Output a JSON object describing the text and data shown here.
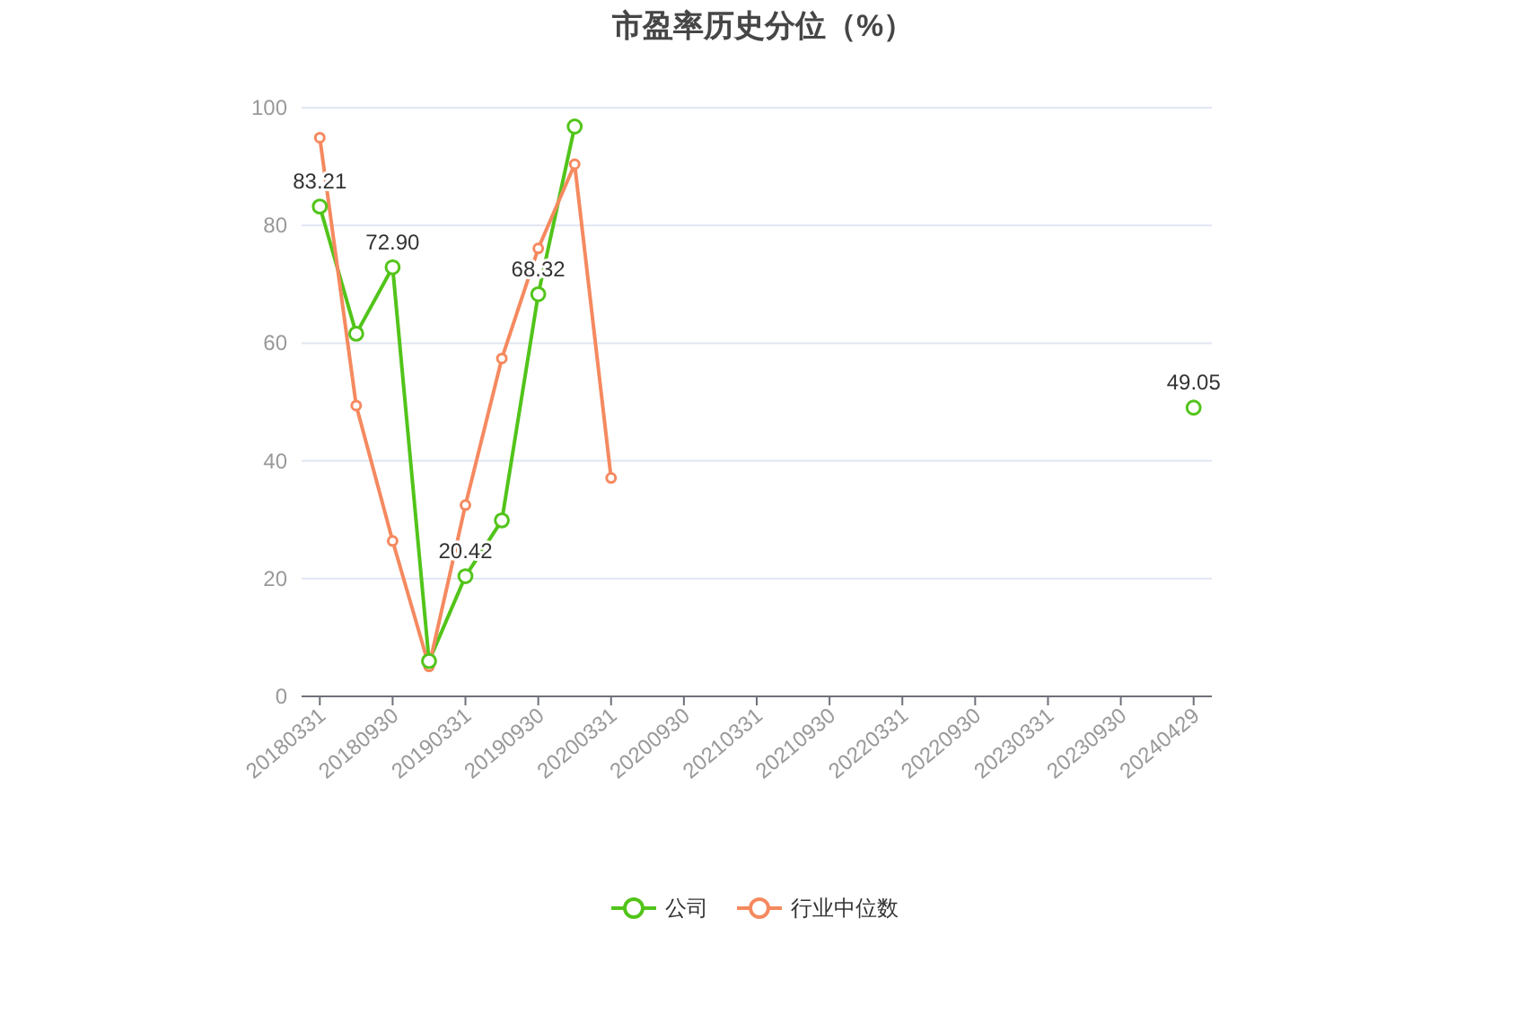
{
  "chart_data": {
    "type": "line",
    "title": "市盈率历史分位（%）",
    "categories": [
      "20180331",
      null,
      "20180930",
      null,
      "20190331",
      null,
      "20190930",
      null,
      "20200331",
      null,
      "20200930",
      null,
      "20210331",
      null,
      "20210930",
      null,
      "20220331",
      null,
      "20220930",
      null,
      "20230331",
      null,
      "20230930",
      null,
      "20240429"
    ],
    "series": [
      {
        "name": "公司",
        "color": "#52c41a",
        "values": [
          83.21,
          61.6,
          72.9,
          6.0,
          20.42,
          29.9,
          68.32,
          96.8,
          null,
          null,
          null,
          null,
          null,
          null,
          null,
          null,
          null,
          null,
          null,
          null,
          null,
          null,
          null,
          null,
          49.05
        ],
        "value_labels": [
          "83.21",
          null,
          "72.90",
          null,
          "20.42",
          null,
          "68.32",
          null,
          null,
          null,
          null,
          null,
          null,
          null,
          null,
          null,
          null,
          null,
          null,
          null,
          null,
          null,
          null,
          null,
          "49.05"
        ]
      },
      {
        "name": "行业中位数",
        "color": "#f5895f",
        "values": [
          94.9,
          49.4,
          26.4,
          5.1,
          32.5,
          57.4,
          76.1,
          90.4,
          37.1,
          null,
          null,
          null,
          null,
          null,
          null,
          null,
          null,
          null,
          null,
          null,
          null,
          null,
          null,
          null,
          null
        ]
      }
    ],
    "ylim": [
      0,
      100
    ],
    "yticks": [
      0,
      20,
      40,
      60,
      80,
      100
    ],
    "grid": "y",
    "legend": "bottom",
    "marker": "circle",
    "line_style": "solid"
  }
}
